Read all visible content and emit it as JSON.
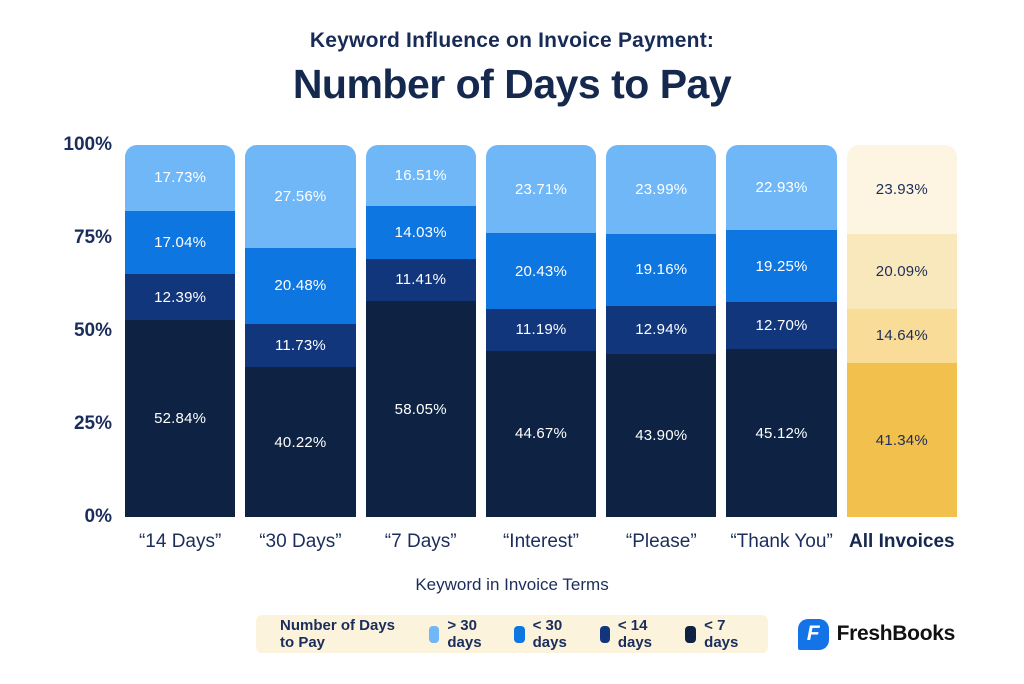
{
  "header": {
    "kicker": "Keyword Influence on Invoice Payment:",
    "title": "Number of Days to Pay"
  },
  "chart_data": {
    "type": "bar",
    "stacked": true,
    "title": "Number of Days to Pay",
    "subtitle": "Keyword Influence on Invoice Payment:",
    "xlabel": "Keyword in Invoice Terms",
    "ylabel": "",
    "ylim": [
      0,
      100
    ],
    "grid": false,
    "legend_position": "bottom",
    "y_ticks": [
      "100%",
      "75%",
      "50%",
      "25%",
      "0%"
    ],
    "categories": [
      "“14 Days”",
      "“30 Days”",
      "“7 Days”",
      "“Interest”",
      "“Please”",
      "“Thank You”",
      "All Invoices"
    ],
    "highlight_category": "All Invoices",
    "series": [
      {
        "name": "> 30 days",
        "values": [
          17.73,
          27.56,
          16.51,
          23.71,
          23.99,
          22.93,
          23.93
        ]
      },
      {
        "name": "< 30 days",
        "values": [
          17.04,
          20.48,
          14.03,
          20.43,
          19.16,
          19.25,
          20.09
        ]
      },
      {
        "name": "< 14 days",
        "values": [
          12.39,
          11.73,
          11.41,
          11.19,
          12.94,
          12.7,
          14.64
        ]
      },
      {
        "name": "< 7 days",
        "values": [
          52.84,
          40.22,
          58.05,
          44.67,
          43.9,
          45.12,
          41.34
        ]
      }
    ]
  },
  "palette": {
    "blue": [
      "#70B7F8",
      "#0E76E1",
      "#12367C",
      "#0E2343"
    ],
    "yellow": [
      "#FDF5E1",
      "#FAE8BD",
      "#F8DC97",
      "#F2C14D"
    ],
    "label_on_blue": "#FFFFFF",
    "label_on_yellow": "#1B2D5B",
    "navy_text": "#1B2D5B",
    "legend_bg": "#FCF3DC",
    "logo_blue": "#1573E8"
  },
  "legend": {
    "title": "Number of Days to Pay"
  },
  "logo": {
    "letter": "F",
    "brand": "FreshBooks"
  }
}
